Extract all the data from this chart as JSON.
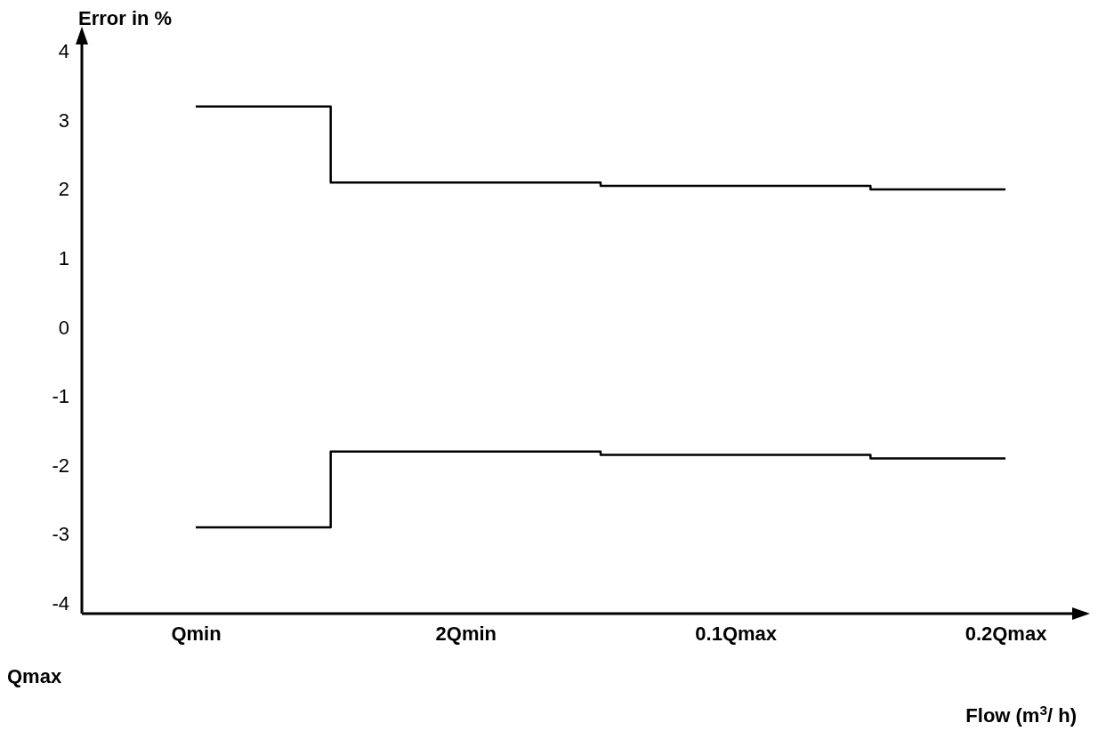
{
  "chart_data": {
    "type": "step",
    "ylabel": "Error in %",
    "xlabel": "Flow (m$^{3}$/ h)",
    "categories": [
      "Qmin",
      "2Qmin",
      "0.1Qmax",
      "0.2Qmax"
    ],
    "series": [
      {
        "color": "#000000",
        "values": [
          3.2,
          2.1,
          2.05,
          2.0
        ]
      },
      {
        "color": "#000000",
        "values": [
          -2.9,
          -1.8,
          -1.85,
          -1.9
        ]
      }
    ],
    "ylim": [
      -4.15,
      4.1
    ],
    "yticks": [
      -4,
      -3,
      -2,
      -1,
      0,
      1,
      2,
      3,
      4
    ],
    "annotations": [
      "Qmax"
    ]
  }
}
